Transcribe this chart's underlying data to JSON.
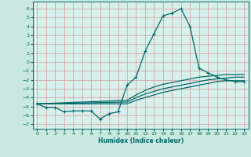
{
  "title": "",
  "xlabel": "Humidex (Indice chaleur)",
  "ylabel": "",
  "bg_color": "#c8e8e0",
  "plot_bg_color": "#d8f0ec",
  "grid_color": "#d4a8a8",
  "line_color": "#006868",
  "xlim": [
    -0.5,
    23.5
  ],
  "ylim": [
    -7.5,
    6.8
  ],
  "xticks": [
    0,
    1,
    2,
    3,
    4,
    5,
    6,
    7,
    8,
    9,
    10,
    11,
    12,
    13,
    14,
    15,
    16,
    17,
    18,
    19,
    20,
    21,
    22,
    23
  ],
  "yticks": [
    -7,
    -6,
    -5,
    -4,
    -3,
    -2,
    -1,
    0,
    1,
    2,
    3,
    4,
    5,
    6
  ],
  "line1_x": [
    0,
    1,
    2,
    3,
    4,
    5,
    6,
    7,
    8,
    9,
    10,
    11,
    12,
    13,
    14,
    15,
    16,
    17,
    18,
    19,
    20,
    21,
    22,
    23
  ],
  "line1_y": [
    -4.7,
    -5.1,
    -5.1,
    -5.6,
    -5.5,
    -5.5,
    -5.5,
    -6.4,
    -5.8,
    -5.6,
    -2.6,
    -1.7,
    1.2,
    3.2,
    5.2,
    5.5,
    6.0,
    4.0,
    -0.7,
    -1.2,
    -1.7,
    -2.0,
    -2.2,
    -2.2
  ],
  "line2_x": [
    0,
    10,
    11,
    12,
    13,
    14,
    15,
    16,
    17,
    18,
    19,
    20,
    21,
    22,
    23
  ],
  "line2_y": [
    -4.7,
    -4.3,
    -3.7,
    -3.2,
    -2.8,
    -2.5,
    -2.3,
    -2.1,
    -1.9,
    -1.7,
    -1.6,
    -1.5,
    -1.4,
    -1.4,
    -1.4
  ],
  "line3_x": [
    0,
    10,
    11,
    12,
    13,
    14,
    15,
    16,
    17,
    18,
    19,
    20,
    21,
    22,
    23
  ],
  "line3_y": [
    -4.7,
    -4.5,
    -4.0,
    -3.6,
    -3.3,
    -3.0,
    -2.8,
    -2.6,
    -2.4,
    -2.2,
    -2.0,
    -1.9,
    -1.8,
    -1.7,
    -1.7
  ],
  "line4_x": [
    0,
    10,
    11,
    12,
    13,
    14,
    15,
    16,
    17,
    18,
    19,
    20,
    21,
    22,
    23
  ],
  "line4_y": [
    -4.7,
    -4.7,
    -4.3,
    -4.0,
    -3.7,
    -3.4,
    -3.2,
    -3.0,
    -2.8,
    -2.6,
    -2.4,
    -2.2,
    -2.1,
    -2.1,
    -2.1
  ]
}
